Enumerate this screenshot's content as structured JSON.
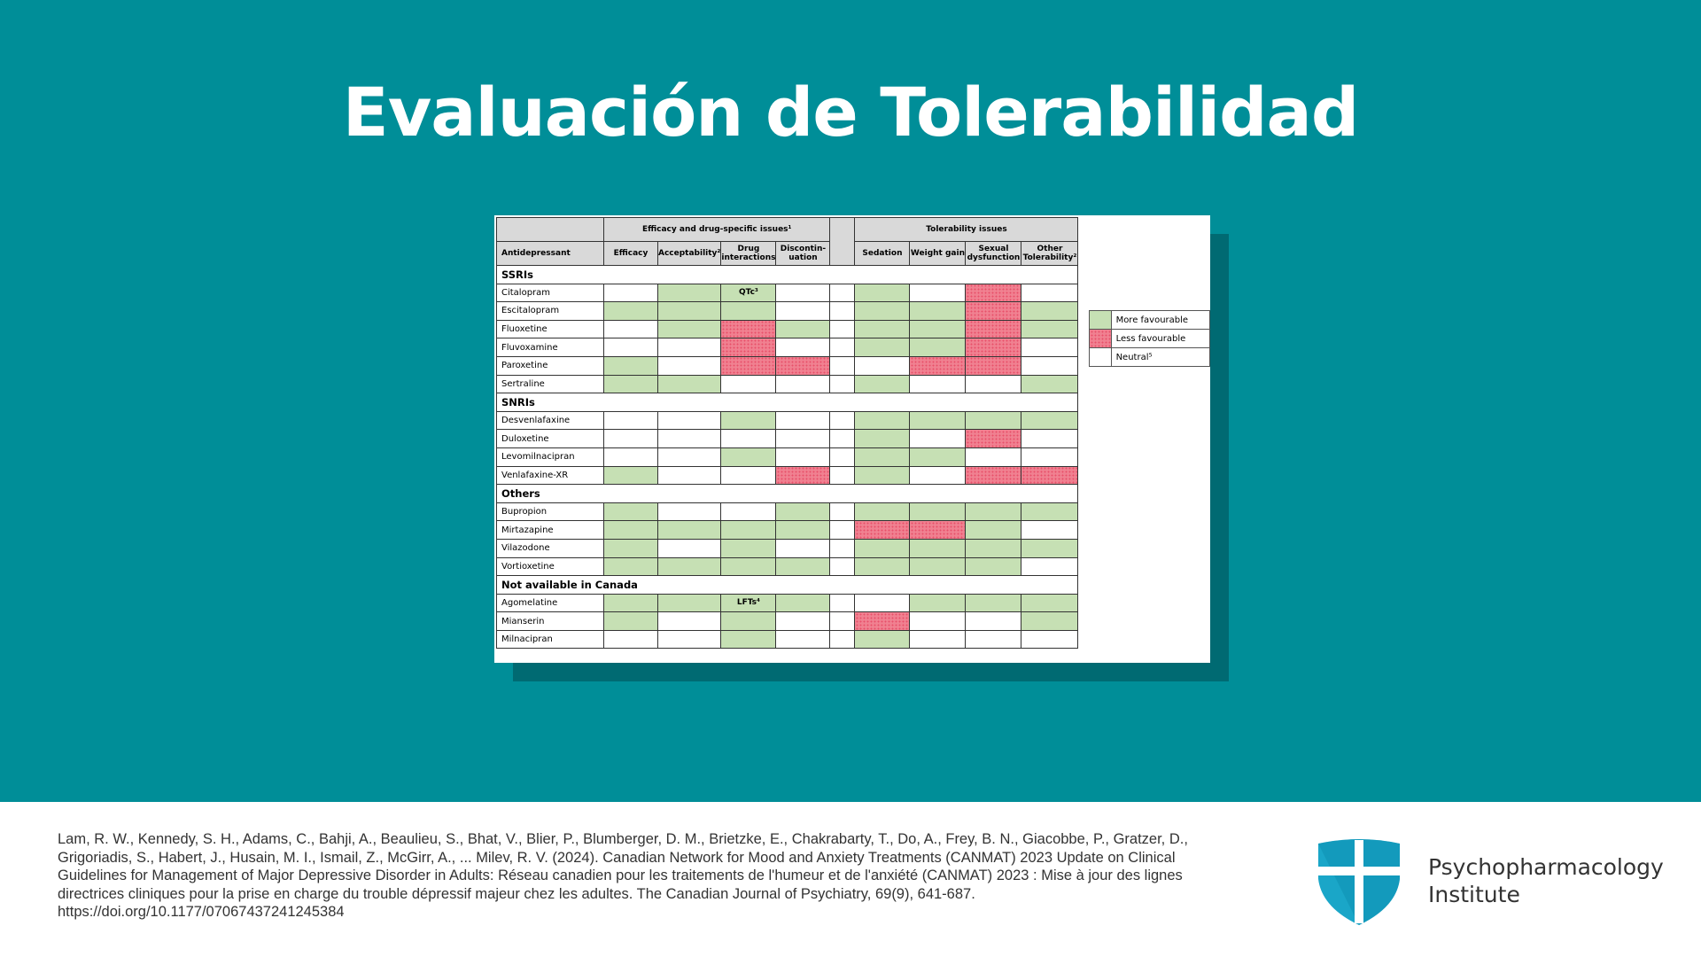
{
  "slide": {
    "title": "Evaluación de Tolerabilidad",
    "background_color": "#008e98"
  },
  "table": {
    "group_headers": {
      "efficacy": "Efficacy and drug-specific issues¹",
      "tolerability": "Tolerability issues"
    },
    "columns": [
      "Antidepressant",
      "Efficacy",
      "Acceptability²",
      "Drug interactions",
      "Discontin-uation",
      "Sedation",
      "Weight gain",
      "Sexual dysfunction",
      "Other Tolerability²"
    ],
    "rows": [
      {
        "type": "section",
        "label": "SSRIs"
      },
      {
        "type": "drug",
        "name": "Citalopram",
        "cells": [
          "w",
          "g",
          "g",
          "w",
          "g",
          "w",
          "r",
          "w"
        ],
        "texts": [
          "",
          "",
          "QTc³",
          "",
          "",
          "",
          "",
          ""
        ]
      },
      {
        "type": "drug",
        "name": "Escitalopram",
        "cells": [
          "g",
          "g",
          "g",
          "w",
          "g",
          "g",
          "r",
          "g"
        ],
        "texts": [
          "",
          "",
          "",
          "",
          "",
          "",
          "",
          ""
        ]
      },
      {
        "type": "drug",
        "name": "Fluoxetine",
        "cells": [
          "w",
          "g",
          "r",
          "g",
          "g",
          "g",
          "r",
          "g"
        ],
        "texts": [
          "",
          "",
          "",
          "",
          "",
          "",
          "",
          ""
        ]
      },
      {
        "type": "drug",
        "name": "Fluvoxamine",
        "cells": [
          "w",
          "w",
          "r",
          "w",
          "g",
          "g",
          "r",
          "w"
        ],
        "texts": [
          "",
          "",
          "",
          "",
          "",
          "",
          "",
          ""
        ]
      },
      {
        "type": "drug",
        "name": "Paroxetine",
        "cells": [
          "g",
          "w",
          "r",
          "r",
          "w",
          "r",
          "r",
          "w"
        ],
        "texts": [
          "",
          "",
          "",
          "",
          "",
          "",
          "",
          ""
        ]
      },
      {
        "type": "drug",
        "name": "Sertraline",
        "cells": [
          "g",
          "g",
          "w",
          "w",
          "g",
          "w",
          "w",
          "g"
        ],
        "texts": [
          "",
          "",
          "",
          "",
          "",
          "",
          "",
          ""
        ]
      },
      {
        "type": "section",
        "label": "SNRIs"
      },
      {
        "type": "drug",
        "name": "Desvenlafaxine",
        "cells": [
          "w",
          "w",
          "g",
          "w",
          "g",
          "g",
          "g",
          "g"
        ],
        "texts": [
          "",
          "",
          "",
          "",
          "",
          "",
          "",
          ""
        ]
      },
      {
        "type": "drug",
        "name": "Duloxetine",
        "cells": [
          "w",
          "w",
          "w",
          "w",
          "g",
          "w",
          "r",
          "w"
        ],
        "texts": [
          "",
          "",
          "",
          "",
          "",
          "",
          "",
          ""
        ]
      },
      {
        "type": "drug",
        "name": "Levomilnacipran",
        "cells": [
          "w",
          "w",
          "g",
          "w",
          "g",
          "g",
          "w",
          "w"
        ],
        "texts": [
          "",
          "",
          "",
          "",
          "",
          "",
          "",
          ""
        ]
      },
      {
        "type": "drug",
        "name": "Venlafaxine-XR",
        "cells": [
          "g",
          "w",
          "w",
          "r",
          "g",
          "w",
          "r",
          "r"
        ],
        "texts": [
          "",
          "",
          "",
          "",
          "",
          "",
          "",
          ""
        ]
      },
      {
        "type": "section",
        "label": "Others"
      },
      {
        "type": "drug",
        "name": "Bupropion",
        "cells": [
          "g",
          "w",
          "w",
          "g",
          "g",
          "g",
          "g",
          "g"
        ],
        "texts": [
          "",
          "",
          "",
          "",
          "",
          "",
          "",
          ""
        ]
      },
      {
        "type": "drug",
        "name": "Mirtazapine",
        "cells": [
          "g",
          "g",
          "g",
          "g",
          "r",
          "r",
          "g",
          "w"
        ],
        "texts": [
          "",
          "",
          "",
          "",
          "",
          "",
          "",
          ""
        ]
      },
      {
        "type": "drug",
        "name": "Vilazodone",
        "cells": [
          "g",
          "w",
          "g",
          "w",
          "g",
          "g",
          "g",
          "g"
        ],
        "texts": [
          "",
          "",
          "",
          "",
          "",
          "",
          "",
          ""
        ]
      },
      {
        "type": "drug",
        "name": "Vortioxetine",
        "cells": [
          "g",
          "g",
          "g",
          "g",
          "g",
          "g",
          "g",
          "w"
        ],
        "texts": [
          "",
          "",
          "",
          "",
          "",
          "",
          "",
          ""
        ]
      },
      {
        "type": "section",
        "label": "Not available in Canada"
      },
      {
        "type": "drug",
        "name": "Agomelatine",
        "cells": [
          "g",
          "g",
          "g",
          "g",
          "w",
          "g",
          "g",
          "g"
        ],
        "texts": [
          "",
          "",
          "LFTs⁴",
          "",
          "",
          "",
          "",
          ""
        ]
      },
      {
        "type": "drug",
        "name": "Mianserin",
        "cells": [
          "g",
          "w",
          "g",
          "w",
          "r",
          "w",
          "w",
          "g"
        ],
        "texts": [
          "",
          "",
          "",
          "",
          "",
          "",
          "",
          ""
        ]
      },
      {
        "type": "drug",
        "name": "Milnacipran",
        "cells": [
          "w",
          "w",
          "g",
          "w",
          "g",
          "w",
          "w",
          "w"
        ],
        "texts": [
          "",
          "",
          "",
          "",
          "",
          "",
          "",
          ""
        ]
      }
    ],
    "colors": {
      "more_favourable": "#c6e0b4",
      "less_favourable": "#f08090",
      "neutral": "#ffffff"
    }
  },
  "legend": {
    "items": [
      {
        "swatch": "g",
        "label": "More favourable"
      },
      {
        "swatch": "r",
        "label": "Less favourable"
      },
      {
        "swatch": "w",
        "label": "Neutral⁵"
      }
    ]
  },
  "footer": {
    "reference": "Lam, R. W., Kennedy, S. H., Adams, C., Bahji, A., Beaulieu, S., Bhat, V., Blier, P., Blumberger, D. M., Brietzke, E., Chakrabarty, T., Do, A., Frey, B. N., Giacobbe, P., Gratzer, D., Grigoriadis, S., Habert, J., Husain, M. I., Ismail, Z., McGirr, A., ... Milev, R. V. (2024). Canadian Network for Mood and Anxiety Treatments (CANMAT) 2023 Update on Clinical Guidelines for Management of Major Depressive Disorder in Adults: Réseau canadien pour les traitements de l'humeur et de l'anxiété (CANMAT) 2023 : Mise à jour des lignes directrices cliniques pour la prise en charge du trouble dépressif majeur chez les adultes. The Canadian Journal of Psychiatry, 69(9), 641-687. https://doi.org/10.1177/07067437241245384",
    "brand_line1": "Psychopharmacology",
    "brand_line2": "Institute",
    "logo_icon": "shield-cross-icon",
    "logo_color": "#1aa6c8"
  }
}
